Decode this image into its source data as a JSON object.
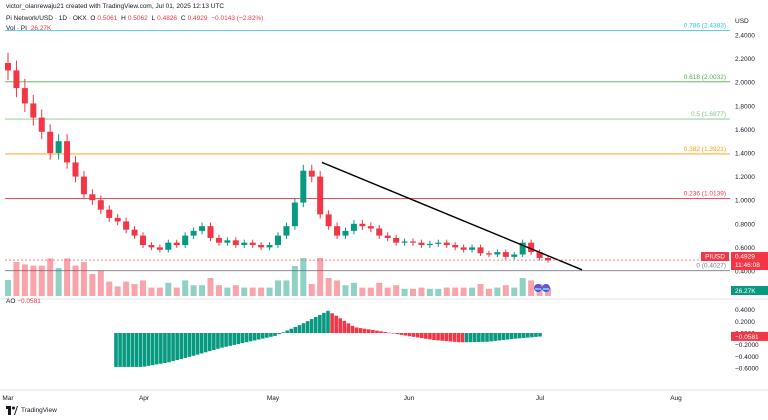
{
  "header": {
    "created_line": "victor_olanrewaju21 created with TradingView.com, Jul 01, 2025 12:13 UTC",
    "symbol": "Pi Network/USD · 1D · OKX",
    "o_label": "O",
    "o_value": "0.5061",
    "h_label": "H",
    "h_value": "0.5062",
    "l_label": "L",
    "l_value": "0.4826",
    "c_label": "C",
    "c_value": "0.4929",
    "change": "−0.0143 (−2.82%)",
    "vol_label": "Vol · PI",
    "vol_value": "26.27K"
  },
  "price_axis": {
    "currency": "USD",
    "ticks": [
      "2.4000",
      "2.2000",
      "2.0000",
      "1.8000",
      "1.6000",
      "1.4000",
      "1.2000",
      "1.0000",
      "0.8000",
      "0.6000",
      "0.4000"
    ],
    "current_symbol": "PIUSD",
    "current_price": "0.4929",
    "countdown": "11:46:08",
    "volume_tag": "26.27K"
  },
  "fib_levels": [
    {
      "label": "0.786 (2.4383)",
      "price": 2.4383,
      "color": "#26c6da"
    },
    {
      "label": "0.618 (2.0032)",
      "price": 2.0032,
      "color": "#4caf50"
    },
    {
      "label": "0.5 (1.6877)",
      "price": 1.6877,
      "color": "#81c784"
    },
    {
      "label": "0.382 (1.3921)",
      "price": 1.3921,
      "color": "#ff9800"
    },
    {
      "label": "0.236 (1.0139)",
      "price": 1.0139,
      "color": "#f23645"
    },
    {
      "label": "0 (0.4027)",
      "price": 0.4027,
      "color": "#787b86"
    }
  ],
  "ao": {
    "label": "AO",
    "value": "−0.0581",
    "tag": "−0.0581",
    "ticks": [
      "0.4000",
      "0.2000",
      "0.0000",
      "−0.2000",
      "−0.4000",
      "−0.6000"
    ]
  },
  "x_axis": {
    "ticks": [
      "Mar",
      "Apr",
      "May",
      "Jun",
      "Jul",
      "Aug"
    ]
  },
  "footer": {
    "brand": "TradingView"
  },
  "colors": {
    "up": "#089981",
    "down": "#f23645",
    "grid": "#f0f3fa",
    "trendline": "#000000"
  },
  "chart_data": [
    {
      "type": "candlestick",
      "title": "Pi Network/USD · 1D · OKX",
      "ylim": [
        0.4,
        2.45
      ],
      "x": [
        "Feb 28",
        "Mar 2",
        "Mar 4",
        "Mar 6",
        "Mar 8",
        "Mar 10",
        "Mar 12",
        "Mar 14",
        "Mar 16",
        "Mar 18",
        "Mar 20",
        "Mar 22",
        "Mar 24",
        "Mar 26",
        "Mar 28",
        "Mar 30",
        "Apr 1",
        "Apr 3",
        "Apr 5",
        "Apr 7",
        "Apr 9",
        "Apr 11",
        "Apr 13",
        "Apr 15",
        "Apr 17",
        "Apr 19",
        "Apr 21",
        "Apr 23",
        "Apr 25",
        "Apr 27",
        "Apr 29",
        "May 1",
        "May 3",
        "May 5",
        "May 7",
        "May 9",
        "May 11",
        "May 12",
        "May 13",
        "May 14",
        "May 15",
        "May 17",
        "May 19",
        "May 21",
        "May 23",
        "May 25",
        "May 27",
        "May 29",
        "May 31",
        "Jun 2",
        "Jun 4",
        "Jun 6",
        "Jun 8",
        "Jun 10",
        "Jun 12",
        "Jun 14",
        "Jun 16",
        "Jun 18",
        "Jun 20",
        "Jun 22",
        "Jun 24",
        "Jun 26",
        "Jun 28",
        "Jun 30",
        "Jul 1"
      ],
      "series": [
        {
          "name": "close",
          "values": [
            2.1,
            1.95,
            1.82,
            1.7,
            1.58,
            1.4,
            1.5,
            1.32,
            1.2,
            1.05,
            1.0,
            0.92,
            0.85,
            0.82,
            0.75,
            0.7,
            0.62,
            0.6,
            0.58,
            0.64,
            0.62,
            0.7,
            0.74,
            0.78,
            0.68,
            0.64,
            0.66,
            0.62,
            0.64,
            0.62,
            0.6,
            0.62,
            0.7,
            0.78,
            0.98,
            1.25,
            1.2,
            0.88,
            0.78,
            0.7,
            0.74,
            0.8,
            0.78,
            0.76,
            0.7,
            0.68,
            0.64,
            0.65,
            0.64,
            0.62,
            0.63,
            0.64,
            0.62,
            0.6,
            0.58,
            0.6,
            0.55,
            0.54,
            0.56,
            0.52,
            0.54,
            0.64,
            0.56,
            0.51,
            0.49
          ]
        }
      ]
    },
    {
      "type": "bar",
      "title": "AO",
      "ylim": [
        -0.6,
        0.4
      ],
      "x": [
        "Mar 26",
        "Apr 1",
        "Apr 7",
        "Apr 13",
        "Apr 19",
        "Apr 25",
        "May 1",
        "May 7",
        "May 13",
        "May 19",
        "May 25",
        "May 31",
        "Jun 6",
        "Jun 12",
        "Jun 18",
        "Jun 24",
        "Jul 1"
      ],
      "series": [
        {
          "name": "AO",
          "values": [
            -0.58,
            -0.58,
            -0.5,
            -0.38,
            -0.25,
            -0.15,
            -0.05,
            0.15,
            0.38,
            0.1,
            0.03,
            -0.05,
            -0.12,
            -0.16,
            -0.15,
            -0.1,
            -0.06
          ]
        }
      ]
    }
  ]
}
